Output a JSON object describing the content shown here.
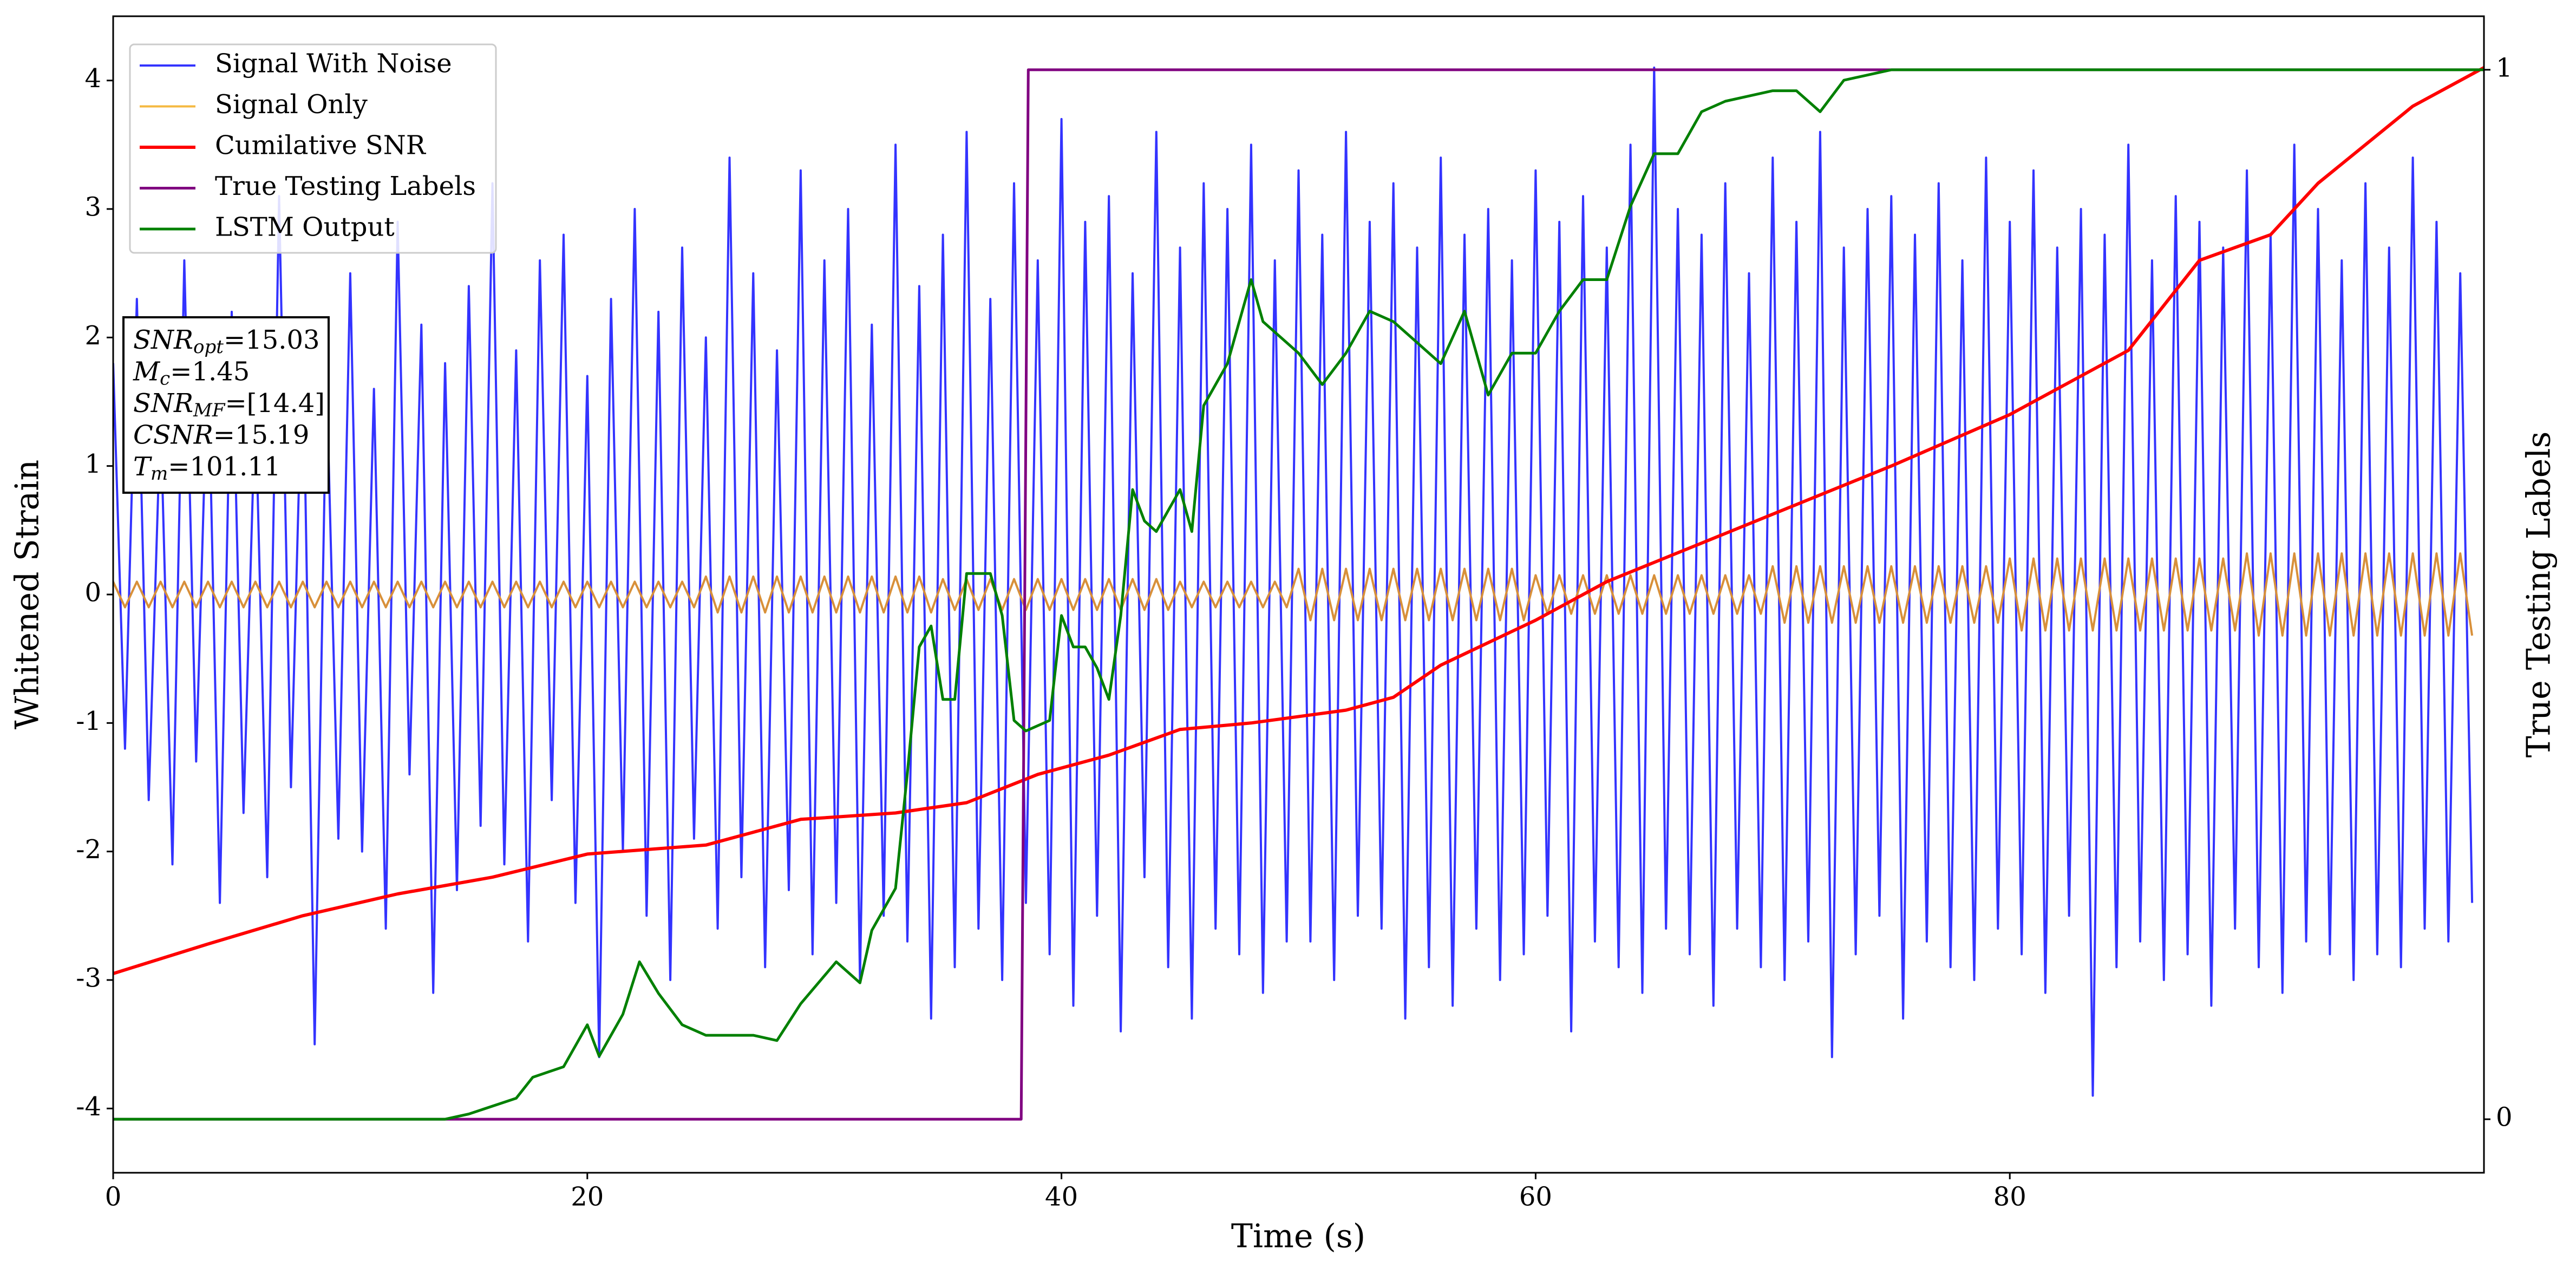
{
  "chart_data": {
    "type": "line",
    "xlabel": "Time (s)",
    "ylabel": "Whitened Strain",
    "y2label": "True Testing Labels",
    "xlim": [
      0,
      100
    ],
    "xticks": [
      0,
      20,
      40,
      60,
      80
    ],
    "ylim": [
      -4.5,
      4.5
    ],
    "yticks": [
      -4,
      -3,
      -2,
      -1,
      0,
      1,
      2,
      3,
      4
    ],
    "y2lim": [
      -0.051,
      1.051
    ],
    "y2ticks": [
      0,
      1
    ],
    "legend": "upper-left",
    "annotation": [
      {
        "symbol": "SNR",
        "subscript": "opt",
        "text": "=15.03"
      },
      {
        "symbol": "M",
        "subscript": "c",
        "text": "=1.45"
      },
      {
        "symbol": "SNR",
        "subscript": "MF",
        "text": "=[14.4]"
      },
      {
        "symbol": "CSNR",
        "text": "=15.19"
      },
      {
        "symbol": "T",
        "subscript": "m",
        "text": "=101.11"
      }
    ],
    "series": [
      {
        "name": "Signal With Noise",
        "color": "#3333ff",
        "width": 4,
        "x": [
          0,
          0.5,
          1,
          1.5,
          2,
          2.5,
          3,
          3.5,
          4,
          4.5,
          5,
          5.5,
          6,
          6.5,
          7,
          7.5,
          8,
          8.5,
          9,
          9.5,
          10,
          10.5,
          11,
          11.5,
          12,
          12.5,
          13,
          13.5,
          14,
          14.5,
          15,
          15.5,
          16,
          16.5,
          17,
          17.5,
          18,
          18.5,
          19,
          19.5,
          20,
          20.5,
          21,
          21.5,
          22,
          22.5,
          23,
          23.5,
          24,
          24.5,
          25,
          25.5,
          26,
          26.5,
          27,
          27.5,
          28,
          28.5,
          29,
          29.5,
          30,
          30.5,
          31,
          31.5,
          32,
          32.5,
          33,
          33.5,
          34,
          34.5,
          35,
          35.5,
          36,
          36.5,
          37,
          37.5,
          38,
          38.5,
          39,
          39.5,
          40,
          40.5,
          41,
          41.5,
          42,
          42.5,
          43,
          43.5,
          44,
          44.5,
          45,
          45.5,
          46,
          46.5,
          47,
          47.5,
          48,
          48.5,
          49,
          49.5,
          50,
          50.5,
          51,
          51.5,
          52,
          52.5,
          53,
          53.5,
          54,
          54.5,
          55,
          55.5,
          56,
          56.5,
          57,
          57.5,
          58,
          58.5,
          59,
          59.5,
          60,
          60.5,
          61,
          61.5,
          62,
          62.5,
          63,
          63.5,
          64,
          64.5,
          65,
          65.5,
          66,
          66.5,
          67,
          67.5,
          68,
          68.5,
          69,
          69.5,
          70,
          70.5,
          71,
          71.5,
          72,
          72.5,
          73,
          73.5,
          74,
          74.5,
          75,
          75.5,
          76,
          76.5,
          77,
          77.5,
          78,
          78.5,
          79,
          79.5,
          80,
          80.5,
          81,
          81.5,
          82,
          82.5,
          83,
          83.5,
          84,
          84.5,
          85,
          85.5,
          86,
          86.5,
          87,
          87.5,
          88,
          88.5,
          89,
          89.5,
          90,
          90.5,
          91,
          91.5,
          92,
          92.5,
          93,
          93.5,
          94,
          94.5,
          95,
          95.5,
          96,
          96.5,
          97,
          97.5,
          98,
          98.5,
          99,
          99.5
        ],
        "values": [
          1.8,
          -1.2,
          2.3,
          -1.6,
          1.4,
          -2.1,
          2.6,
          -1.3,
          1.9,
          -2.4,
          2.2,
          -1.7,
          1.5,
          -2.2,
          3.1,
          -1.5,
          2.0,
          -3.5,
          1.7,
          -1.9,
          2.5,
          -2.0,
          1.6,
          -2.6,
          2.9,
          -1.4,
          2.1,
          -3.1,
          1.8,
          -2.3,
          2.4,
          -1.8,
          3.2,
          -2.1,
          1.9,
          -2.7,
          2.6,
          -1.6,
          2.8,
          -2.4,
          1.7,
          -3.6,
          2.3,
          -2.0,
          3.0,
          -2.5,
          2.2,
          -3.0,
          2.7,
          -1.9,
          2.0,
          -2.6,
          3.4,
          -2.2,
          2.5,
          -2.9,
          1.9,
          -2.3,
          3.3,
          -2.8,
          2.6,
          -2.4,
          3.0,
          -3.0,
          2.1,
          -2.5,
          3.5,
          -2.7,
          2.4,
          -3.3,
          2.8,
          -2.9,
          3.6,
          -2.6,
          2.3,
          -3.0,
          3.2,
          -2.4,
          2.6,
          -2.8,
          3.7,
          -3.2,
          2.9,
          -2.5,
          3.1,
          -3.4,
          2.5,
          -2.2,
          3.6,
          -2.9,
          2.7,
          -3.3,
          3.2,
          -2.6,
          3.0,
          -2.8,
          3.5,
          -3.1,
          2.6,
          -2.7,
          3.3,
          -2.7,
          2.8,
          -3.0,
          3.6,
          -2.5,
          2.9,
          -2.6,
          3.2,
          -3.3,
          2.7,
          -2.9,
          3.4,
          -3.2,
          2.8,
          -2.6,
          3.0,
          -3.0,
          2.6,
          -2.8,
          3.3,
          -2.5,
          2.9,
          -3.4,
          3.1,
          -2.7,
          2.7,
          -2.9,
          3.5,
          -3.1,
          4.1,
          -2.6,
          3.0,
          -2.8,
          2.8,
          -3.2,
          3.2,
          -2.6,
          2.5,
          -2.9,
          3.4,
          -3.0,
          2.9,
          -2.7,
          3.6,
          -3.6,
          2.7,
          -2.8,
          3.0,
          -2.5,
          3.1,
          -3.3,
          2.8,
          -2.7,
          3.2,
          -2.9,
          2.6,
          -3.0,
          3.4,
          -2.6,
          2.9,
          -2.8,
          3.3,
          -3.1,
          2.7,
          -2.5,
          3.0,
          -3.9,
          2.8,
          -2.9,
          3.5,
          -2.7,
          2.6,
          -3.0,
          3.1,
          -2.8,
          2.9,
          -3.2,
          2.7,
          -2.6,
          3.3,
          -2.9,
          2.8,
          -3.1,
          3.5,
          -2.7,
          3.0,
          -2.8,
          2.6,
          -3.0,
          3.2,
          -2.8,
          2.7,
          -2.9,
          3.4,
          -2.6,
          2.9,
          -2.7,
          2.5,
          -2.4
        ]
      },
      {
        "name": "Signal Only",
        "color": "#d8903a",
        "legend_color": "#f5b942",
        "width": 4,
        "x": [
          0,
          0.5,
          1,
          1.5,
          2,
          2.5,
          3,
          3.5,
          4,
          4.5,
          5,
          5.5,
          6,
          6.5,
          7,
          7.5,
          8,
          8.5,
          9,
          9.5,
          10,
          10.5,
          11,
          11.5,
          12,
          12.5,
          13,
          13.5,
          14,
          14.5,
          15,
          15.5,
          16,
          16.5,
          17,
          17.5,
          18,
          18.5,
          19,
          19.5,
          20,
          20.5,
          21,
          21.5,
          22,
          22.5,
          23,
          23.5,
          24,
          24.5,
          25,
          25.5,
          26,
          26.5,
          27,
          27.5,
          28,
          28.5,
          29,
          29.5,
          30,
          30.5,
          31,
          31.5,
          32,
          32.5,
          33,
          33.5,
          34,
          34.5,
          35,
          35.5,
          36,
          36.5,
          37,
          37.5,
          38,
          38.5,
          39,
          39.5,
          40,
          40.5,
          41,
          41.5,
          42,
          42.5,
          43,
          43.5,
          44,
          44.5,
          45,
          45.5,
          46,
          46.5,
          47,
          47.5,
          48,
          48.5,
          49,
          49.5,
          50,
          50.5,
          51,
          51.5,
          52,
          52.5,
          53,
          53.5,
          54,
          54.5,
          55,
          55.5,
          56,
          56.5,
          57,
          57.5,
          58,
          58.5,
          59,
          59.5,
          60,
          60.5,
          61,
          61.5,
          62,
          62.5,
          63,
          63.5,
          64,
          64.5,
          65,
          65.5,
          66,
          66.5,
          67,
          67.5,
          68,
          68.5,
          69,
          69.5,
          70,
          70.5,
          71,
          71.5,
          72,
          72.5,
          73,
          73.5,
          74,
          74.5,
          75,
          75.5,
          76,
          76.5,
          77,
          77.5,
          78,
          78.5,
          79,
          79.5,
          80,
          80.5,
          81,
          81.5,
          82,
          82.5,
          83,
          83.5,
          84,
          84.5,
          85,
          85.5,
          86,
          86.5,
          87,
          87.5,
          88,
          88.5,
          89,
          89.5,
          90,
          90.5,
          91,
          91.5,
          92,
          92.5,
          93,
          93.5,
          94,
          94.5,
          95,
          95.5,
          96,
          96.5,
          97,
          97.5,
          98,
          98.5,
          99,
          99.5
        ],
        "values": [
          0.1,
          -0.1,
          0.1,
          -0.1,
          0.1,
          -0.1,
          0.1,
          -0.1,
          0.1,
          -0.1,
          0.1,
          -0.1,
          0.1,
          -0.1,
          0.1,
          -0.1,
          0.1,
          -0.1,
          0.1,
          -0.1,
          0.1,
          -0.1,
          0.1,
          -0.1,
          0.1,
          -0.1,
          0.1,
          -0.1,
          0.1,
          -0.1,
          0.1,
          -0.1,
          0.1,
          -0.1,
          0.1,
          -0.1,
          0.1,
          -0.1,
          0.1,
          -0.1,
          0.1,
          -0.1,
          0.1,
          -0.1,
          0.1,
          -0.1,
          0.1,
          -0.1,
          0.1,
          -0.1,
          0.14,
          -0.14,
          0.14,
          -0.14,
          0.14,
          -0.14,
          0.14,
          -0.14,
          0.14,
          -0.14,
          0.14,
          -0.14,
          0.14,
          -0.14,
          0.14,
          -0.14,
          0.14,
          -0.14,
          0.14,
          -0.14,
          0.12,
          -0.12,
          0.12,
          -0.12,
          0.12,
          -0.12,
          0.12,
          -0.12,
          0.12,
          -0.12,
          0.12,
          -0.12,
          0.12,
          -0.12,
          0.12,
          -0.12,
          0.12,
          -0.12,
          0.12,
          -0.12,
          0.1,
          -0.1,
          0.1,
          -0.1,
          0.1,
          -0.1,
          0.1,
          -0.1,
          0.1,
          -0.1,
          0.2,
          -0.2,
          0.2,
          -0.2,
          0.2,
          -0.2,
          0.2,
          -0.2,
          0.2,
          -0.2,
          0.2,
          -0.2,
          0.2,
          -0.2,
          0.2,
          -0.2,
          0.2,
          -0.2,
          0.2,
          -0.2,
          0.15,
          -0.15,
          0.15,
          -0.15,
          0.15,
          -0.15,
          0.15,
          -0.15,
          0.15,
          -0.15,
          0.15,
          -0.15,
          0.15,
          -0.15,
          0.15,
          -0.15,
          0.15,
          -0.15,
          0.15,
          -0.15,
          0.22,
          -0.22,
          0.22,
          -0.22,
          0.22,
          -0.22,
          0.22,
          -0.22,
          0.22,
          -0.22,
          0.22,
          -0.22,
          0.22,
          -0.22,
          0.22,
          -0.22,
          0.22,
          -0.22,
          0.22,
          -0.22,
          0.28,
          -0.28,
          0.28,
          -0.28,
          0.28,
          -0.28,
          0.28,
          -0.28,
          0.28,
          -0.28,
          0.28,
          -0.28,
          0.28,
          -0.28,
          0.28,
          -0.28,
          0.28,
          -0.28,
          0.28,
          -0.28,
          0.32,
          -0.32,
          0.32,
          -0.32,
          0.32,
          -0.32,
          0.32,
          -0.32,
          0.32,
          -0.32,
          0.32,
          -0.32,
          0.32,
          -0.32,
          0.32,
          -0.32,
          0.32,
          -0.32,
          0.32,
          -0.32
        ]
      },
      {
        "name": "Cumilative SNR",
        "color": "#ff0000",
        "width": 6,
        "x": [
          0,
          4,
          8,
          12,
          16,
          20,
          25,
          27,
          29,
          33,
          36,
          39,
          42,
          45,
          48,
          52,
          54,
          56,
          60,
          63,
          67,
          71,
          75,
          80,
          85,
          88,
          91,
          93,
          97,
          100
        ],
        "values": [
          -2.95,
          -2.72,
          -2.5,
          -2.33,
          -2.2,
          -2.02,
          -1.95,
          -1.85,
          -1.75,
          -1.7,
          -1.62,
          -1.4,
          -1.25,
          -1.05,
          -1.0,
          -0.9,
          -0.8,
          -0.55,
          -0.2,
          0.1,
          0.4,
          0.7,
          1.0,
          1.4,
          1.9,
          2.6,
          2.8,
          3.2,
          3.8,
          4.1
        ]
      },
      {
        "name": "True Testing Labels",
        "color": "#800080",
        "width": 5,
        "axis": "y2",
        "x": [
          0,
          38.3,
          38.6,
          100
        ],
        "values": [
          0,
          0,
          1,
          1
        ]
      },
      {
        "name": "LSTM Output",
        "color": "#008000",
        "width": 5,
        "axis": "y2",
        "x": [
          0,
          14,
          15,
          17,
          17.7,
          19,
          20,
          20.5,
          21.5,
          22.2,
          23,
          24,
          25,
          26,
          27,
          28,
          29,
          30.5,
          31.5,
          32,
          33,
          33.5,
          34,
          34.5,
          35,
          35.5,
          36,
          37,
          37.5,
          38,
          38.5,
          39.5,
          40,
          40.5,
          41,
          41.5,
          42,
          42.5,
          43,
          43.5,
          44,
          45,
          45.5,
          46,
          47,
          48,
          48.5,
          50,
          51,
          52,
          53,
          54,
          55,
          56,
          57,
          58,
          59,
          60,
          61,
          62,
          63,
          64,
          65,
          66,
          67,
          68,
          70,
          71,
          72,
          73,
          75,
          80,
          100
        ],
        "values": [
          0,
          0,
          0.005,
          0.02,
          0.04,
          0.05,
          0.09,
          0.06,
          0.1,
          0.15,
          0.12,
          0.09,
          0.08,
          0.08,
          0.08,
          0.075,
          0.11,
          0.15,
          0.13,
          0.18,
          0.22,
          0.33,
          0.45,
          0.47,
          0.4,
          0.4,
          0.52,
          0.52,
          0.48,
          0.38,
          0.37,
          0.38,
          0.48,
          0.45,
          0.45,
          0.43,
          0.4,
          0.48,
          0.6,
          0.57,
          0.56,
          0.6,
          0.56,
          0.68,
          0.72,
          0.8,
          0.76,
          0.73,
          0.7,
          0.73,
          0.77,
          0.76,
          0.74,
          0.72,
          0.77,
          0.69,
          0.73,
          0.73,
          0.77,
          0.8,
          0.8,
          0.87,
          0.92,
          0.92,
          0.96,
          0.97,
          0.98,
          0.98,
          0.96,
          0.99,
          1,
          1,
          1
        ]
      }
    ]
  }
}
